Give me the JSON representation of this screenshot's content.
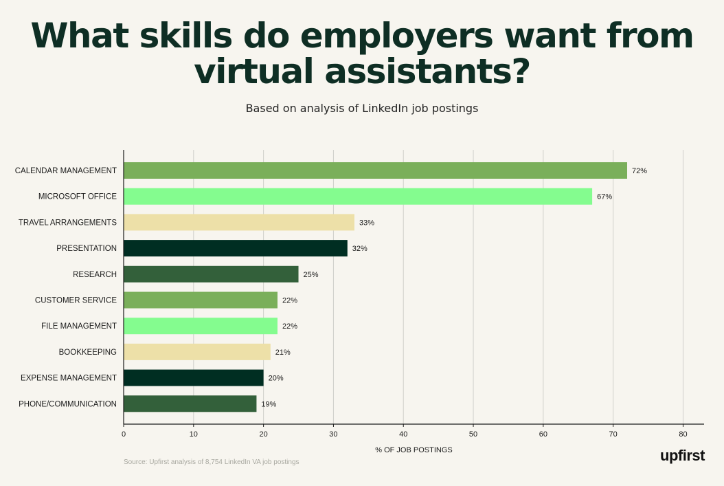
{
  "header": {
    "title": "What skills do employers want from virtual assistants?",
    "subtitle": "Based on analysis of LinkedIn job postings"
  },
  "footer": {
    "source": "Source: Upfirst analysis of 8,754 LinkedIn VA job postings",
    "brand": "upfirst"
  },
  "chart_data": {
    "type": "bar",
    "orientation": "horizontal",
    "categories": [
      "CALENDAR MANAGEMENT",
      "MICROSOFT OFFICE",
      "TRAVEL ARRANGEMENTS",
      "PRESENTATION",
      "RESEARCH",
      "CUSTOMER SERVICE",
      "FILE MANAGEMENT",
      "BOOKKEEPING",
      "EXPENSE MANAGEMENT",
      "PHONE/COMMUNICATION"
    ],
    "values": [
      72,
      67,
      33,
      32,
      25,
      22,
      22,
      21,
      20,
      19
    ],
    "data_labels": [
      "72%",
      "67%",
      "33%",
      "32%",
      "25%",
      "22%",
      "22%",
      "21%",
      "20%",
      "19%"
    ],
    "colors": [
      "#7aaf5a",
      "#84fc8f",
      "#ede0a8",
      "#002e22",
      "#33603a",
      "#7aaf5a",
      "#84fc8f",
      "#ede0a8",
      "#002e22",
      "#33603a"
    ],
    "xlabel": "% OF JOB POSTINGS",
    "ylabel": "",
    "xlim": [
      0,
      83
    ],
    "xticks": [
      0,
      10,
      20,
      30,
      40,
      50,
      60,
      70,
      80
    ],
    "grid": true
  }
}
